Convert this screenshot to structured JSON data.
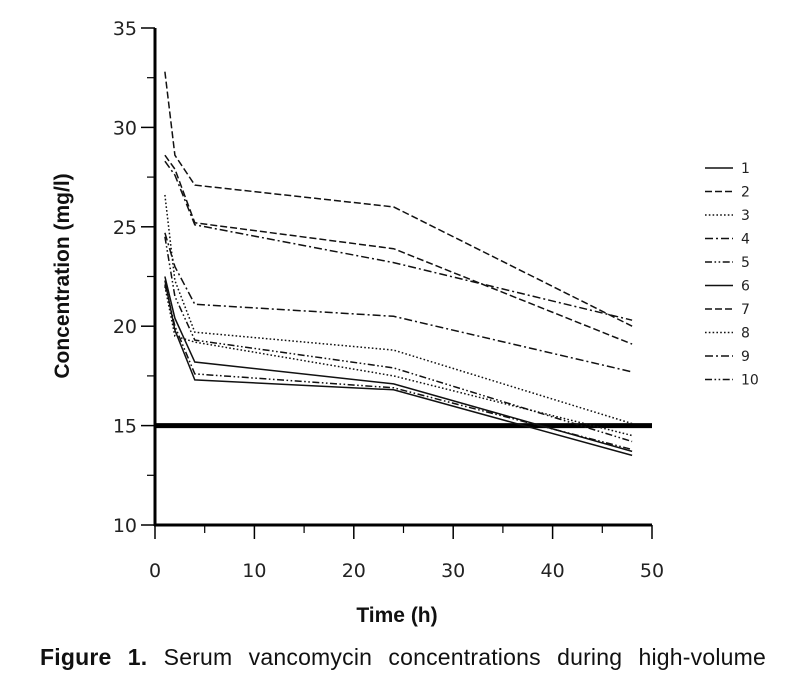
{
  "chart_data": {
    "type": "line",
    "title": "",
    "xlabel": "Time (h)",
    "ylabel": "Concentration (mg/l)",
    "xlim": [
      0,
      50
    ],
    "ylim": [
      10,
      35
    ],
    "xticks": [
      0,
      10,
      20,
      30,
      40,
      50
    ],
    "yticks": [
      10,
      15,
      20,
      25,
      30,
      35
    ],
    "threshold": 15,
    "legend_position": "right",
    "grid": false,
    "x": [
      1,
      2,
      4,
      24,
      48
    ],
    "series": [
      {
        "name": "1",
        "dash": "solid",
        "values": [
          22.3,
          19.8,
          17.3,
          16.8,
          13.5
        ]
      },
      {
        "name": "2",
        "dash": "dashed",
        "values": [
          32.8,
          28.6,
          27.1,
          26.0,
          20.0
        ]
      },
      {
        "name": "3",
        "dash": "dotted",
        "values": [
          26.6,
          22.3,
          19.7,
          18.8,
          15.1
        ]
      },
      {
        "name": "4",
        "dash": "dashdot",
        "values": [
          24.7,
          23.0,
          21.1,
          20.5,
          17.7
        ]
      },
      {
        "name": "5",
        "dash": "dashdotdot",
        "values": [
          24.5,
          21.5,
          19.3,
          17.9,
          14.2
        ]
      },
      {
        "name": "6",
        "dash": "solid",
        "values": [
          22.5,
          20.4,
          18.2,
          17.1,
          13.7
        ]
      },
      {
        "name": "7",
        "dash": "dashed",
        "values": [
          28.6,
          27.9,
          25.2,
          23.9,
          19.1
        ]
      },
      {
        "name": "8",
        "dash": "dotted",
        "values": [
          22.0,
          19.5,
          19.2,
          17.5,
          14.5
        ]
      },
      {
        "name": "9",
        "dash": "dashdot",
        "values": [
          28.3,
          27.6,
          25.1,
          23.2,
          20.3
        ]
      },
      {
        "name": "10",
        "dash": "dashdotdot",
        "values": [
          22.1,
          20.0,
          17.6,
          16.9,
          13.8
        ]
      }
    ]
  },
  "caption": {
    "label": "Figure 1.",
    "text": "Serum vancomycin concentrations during high-volume"
  }
}
